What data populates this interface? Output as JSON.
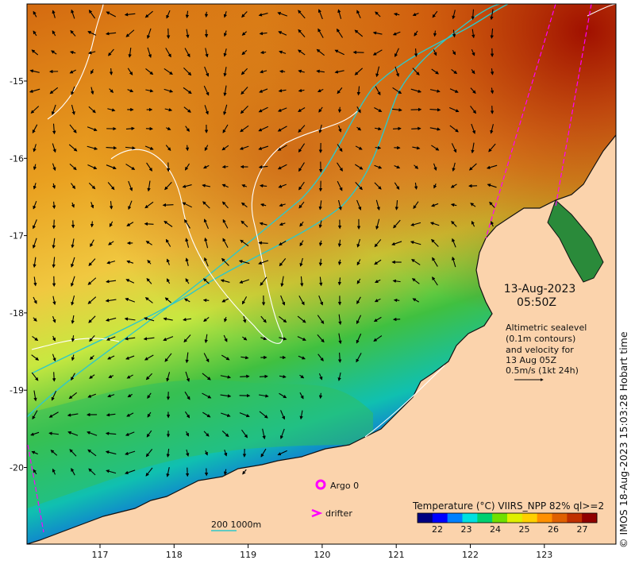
{
  "map": {
    "datetime": "13-Aug-2023",
    "time": "05:50Z",
    "sealevel_note": [
      "Altimetric sealevel",
      "(0.1m contours)",
      "and velocity for",
      "13 Aug 05Z",
      "0.5m/s (1kt 24h)"
    ],
    "legend_argo": "Argo 0",
    "legend_drifter": "drifter",
    "depth_legend": "200  1000m",
    "credit": "© IMOS 18-Aug-2023 15:03:28 Hobart time",
    "lon_ticks": [
      "117",
      "118",
      "119",
      "120",
      "121",
      "122",
      "123"
    ],
    "lat_ticks": [
      "-15",
      "-16",
      "-17",
      "-18",
      "-19",
      "-20"
    ],
    "colorbar": {
      "title": "Temperature (°C) VIIRS_NPP 82% ql>=2",
      "ticks": [
        "22",
        "23",
        "24",
        "25",
        "26",
        "27"
      ],
      "colors": [
        "#000080",
        "#0000ff",
        "#0080ff",
        "#00e0e0",
        "#00d070",
        "#70e000",
        "#e0f000",
        "#ffd000",
        "#ff9000",
        "#e06000",
        "#c03000",
        "#900000"
      ]
    },
    "colors": {
      "land": "#fbd3ac",
      "coast": "#111111",
      "isobath": "#30c8c8",
      "contour": "#ffffff",
      "drifter": "#ff00ff"
    }
  }
}
